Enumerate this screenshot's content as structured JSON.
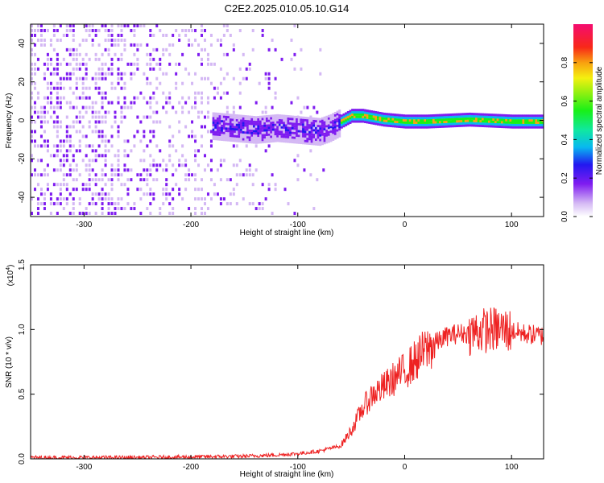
{
  "title": "C2E2.2025.010.05.10.G14",
  "chart_data": [
    {
      "type": "heatmap",
      "xlabel": "Height of straight line (km)",
      "ylabel": "Frequency (Hz)",
      "xlim": [
        -350,
        130
      ],
      "ylim": [
        -50,
        50
      ],
      "x_ticks": [
        -300,
        -200,
        -100,
        0,
        100
      ],
      "x_tick_labels": [
        "-300",
        "-200",
        "-100",
        "0",
        "100"
      ],
      "y_ticks": [
        -40,
        -20,
        0,
        20,
        40
      ],
      "y_tick_labels": [
        "-40",
        "-20",
        "0",
        "20",
        "40"
      ],
      "colorbar": {
        "label": "Normalized spectral amplitude",
        "range": [
          0,
          1
        ],
        "ticks": [
          0.0,
          0.2,
          0.4,
          0.6,
          0.8
        ],
        "tick_labels": [
          "0.0",
          "0.2",
          "0.4",
          "0.6",
          "0.8"
        ]
      },
      "ridge": {
        "x": [
          -180,
          -160,
          -140,
          -120,
          -100,
          -80,
          -70,
          -60,
          -50,
          -40,
          -20,
          0,
          20,
          60,
          100,
          130
        ],
        "frequency": [
          -2,
          -3,
          -4,
          -3,
          -4,
          -5,
          -3,
          0,
          3,
          3,
          1,
          0,
          0,
          1,
          0,
          0
        ]
      }
    },
    {
      "type": "line",
      "xlabel": "Height of straight line (km)",
      "ylabel": "SNR (10 * v/v)",
      "y_multiplier": "(x10",
      "y_multiplier_exp": "4",
      "y_multiplier_close": ")",
      "xlim": [
        -350,
        130
      ],
      "ylim": [
        0,
        1.5
      ],
      "x_ticks": [
        -300,
        -200,
        -100,
        0,
        100
      ],
      "x_tick_labels": [
        "-300",
        "-200",
        "-100",
        "0",
        "100"
      ],
      "y_ticks": [
        0.0,
        0.5,
        1.0,
        1.5
      ],
      "y_tick_labels": [
        "0.0",
        "0.5",
        "1.0",
        "1.5"
      ],
      "series": [
        {
          "color": "#ee2222",
          "x": [
            -350,
            -300,
            -250,
            -200,
            -150,
            -120,
            -100,
            -80,
            -60,
            -50,
            -40,
            -30,
            -20,
            -10,
            0,
            10,
            20,
            30,
            40,
            50,
            60,
            70,
            80,
            90,
            100,
            110,
            120,
            130
          ],
          "values": [
            0.01,
            0.01,
            0.01,
            0.015,
            0.02,
            0.03,
            0.04,
            0.06,
            0.1,
            0.22,
            0.38,
            0.5,
            0.55,
            0.62,
            0.68,
            0.76,
            0.84,
            0.9,
            0.95,
            0.97,
            0.97,
            0.99,
            1.0,
            1.0,
            0.99,
            0.97,
            0.96,
            0.95
          ]
        }
      ]
    }
  ]
}
